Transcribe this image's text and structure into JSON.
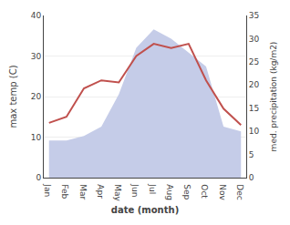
{
  "chart_data": {
    "type": "line",
    "categories": [
      "Jan",
      "Feb",
      "Mar",
      "Apr",
      "May",
      "Jun",
      "Jul",
      "Aug",
      "Sep",
      "Oct",
      "Nov",
      "Dec"
    ],
    "series": [
      {
        "type": "area",
        "axis": "y2",
        "color": "#c5cce8",
        "values": [
          8,
          8,
          9,
          11,
          18,
          28,
          32,
          30,
          27,
          24,
          11,
          10
        ]
      },
      {
        "type": "line",
        "color": "#c0504d",
        "values": [
          13.5,
          15,
          22,
          24,
          23.5,
          30,
          33,
          32,
          33,
          24,
          17,
          13
        ]
      }
    ],
    "xlabel": "date (month)",
    "ylabel": "max temp (C)",
    "y2label": "med. precipitation (kg/m2)",
    "ylim": [
      0,
      40
    ],
    "yticks": [
      0,
      10,
      20,
      30,
      40
    ],
    "y2lim": [
      0,
      35
    ],
    "y2ticks": [
      0,
      5,
      10,
      15,
      20,
      25,
      30,
      35
    ],
    "grid": true
  }
}
